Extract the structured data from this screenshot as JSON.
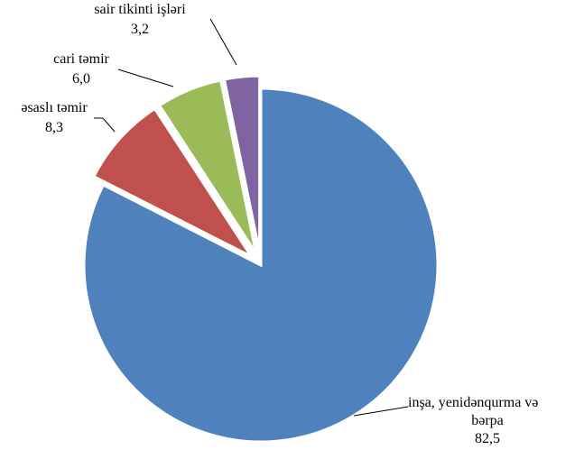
{
  "chart_data": {
    "type": "pie",
    "title": "",
    "slices": [
      {
        "label": "inşa, yenidənqurma və bərpa",
        "label_lines": [
          "inşa, yenidənqurma və",
          "bərpa"
        ],
        "value": 82.5,
        "value_text": "82,5",
        "color": "#4F81BD",
        "exploded": false
      },
      {
        "label": "əsaslı təmir",
        "label_lines": [
          "əsaslı təmir"
        ],
        "value": 8.3,
        "value_text": "8,3",
        "color": "#C0504D",
        "exploded": true
      },
      {
        "label": "cari təmir",
        "label_lines": [
          "cari təmir"
        ],
        "value": 6.0,
        "value_text": "6,0",
        "color": "#9BBB59",
        "exploded": true
      },
      {
        "label": "sair tikinti işləri",
        "label_lines": [
          "sair tikinti işləri"
        ],
        "value": 3.2,
        "value_text": "3,2",
        "color": "#8064A2",
        "exploded": true
      }
    ],
    "start_angle_deg": 0,
    "direction": "clockwise",
    "legend": "none",
    "data_labels": "outside-with-leader-lines"
  }
}
